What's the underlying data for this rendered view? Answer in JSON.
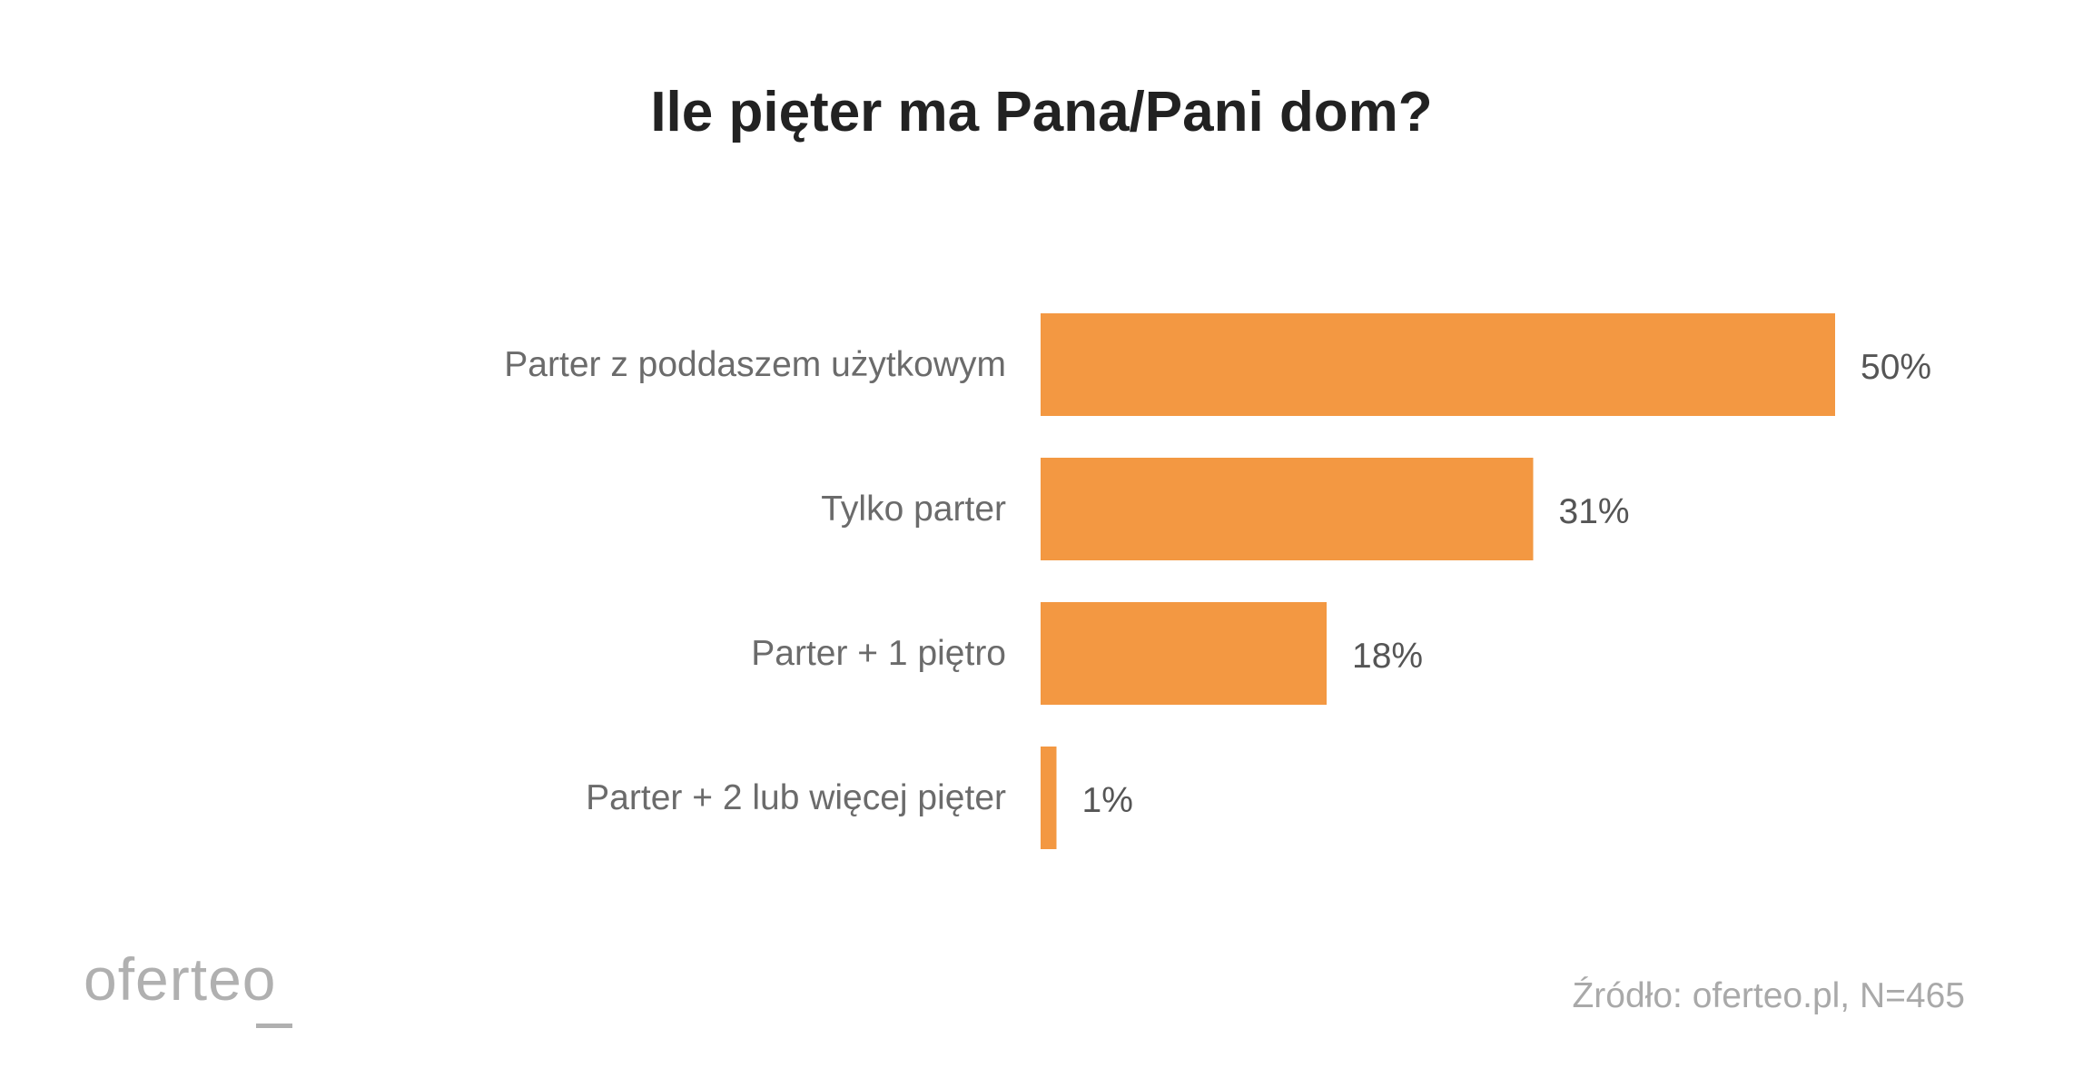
{
  "chart_data": {
    "type": "bar",
    "orientation": "horizontal",
    "title": "Ile pięter ma Pana/Pani dom?",
    "categories": [
      "Parter z poddaszem użytkowym",
      "Tylko parter",
      "Parter + 1 piętro",
      "Parter + 2 lub więcej pięter"
    ],
    "values": [
      50,
      31,
      18,
      1
    ],
    "value_labels": [
      "50%",
      "31%",
      "18%",
      "1%"
    ],
    "unit": "%",
    "grid": false,
    "colors": {
      "bar": "#f39842"
    }
  },
  "footer": {
    "logo_text": "oferteo",
    "source": "Źródło: oferteo.pl, N=465"
  }
}
